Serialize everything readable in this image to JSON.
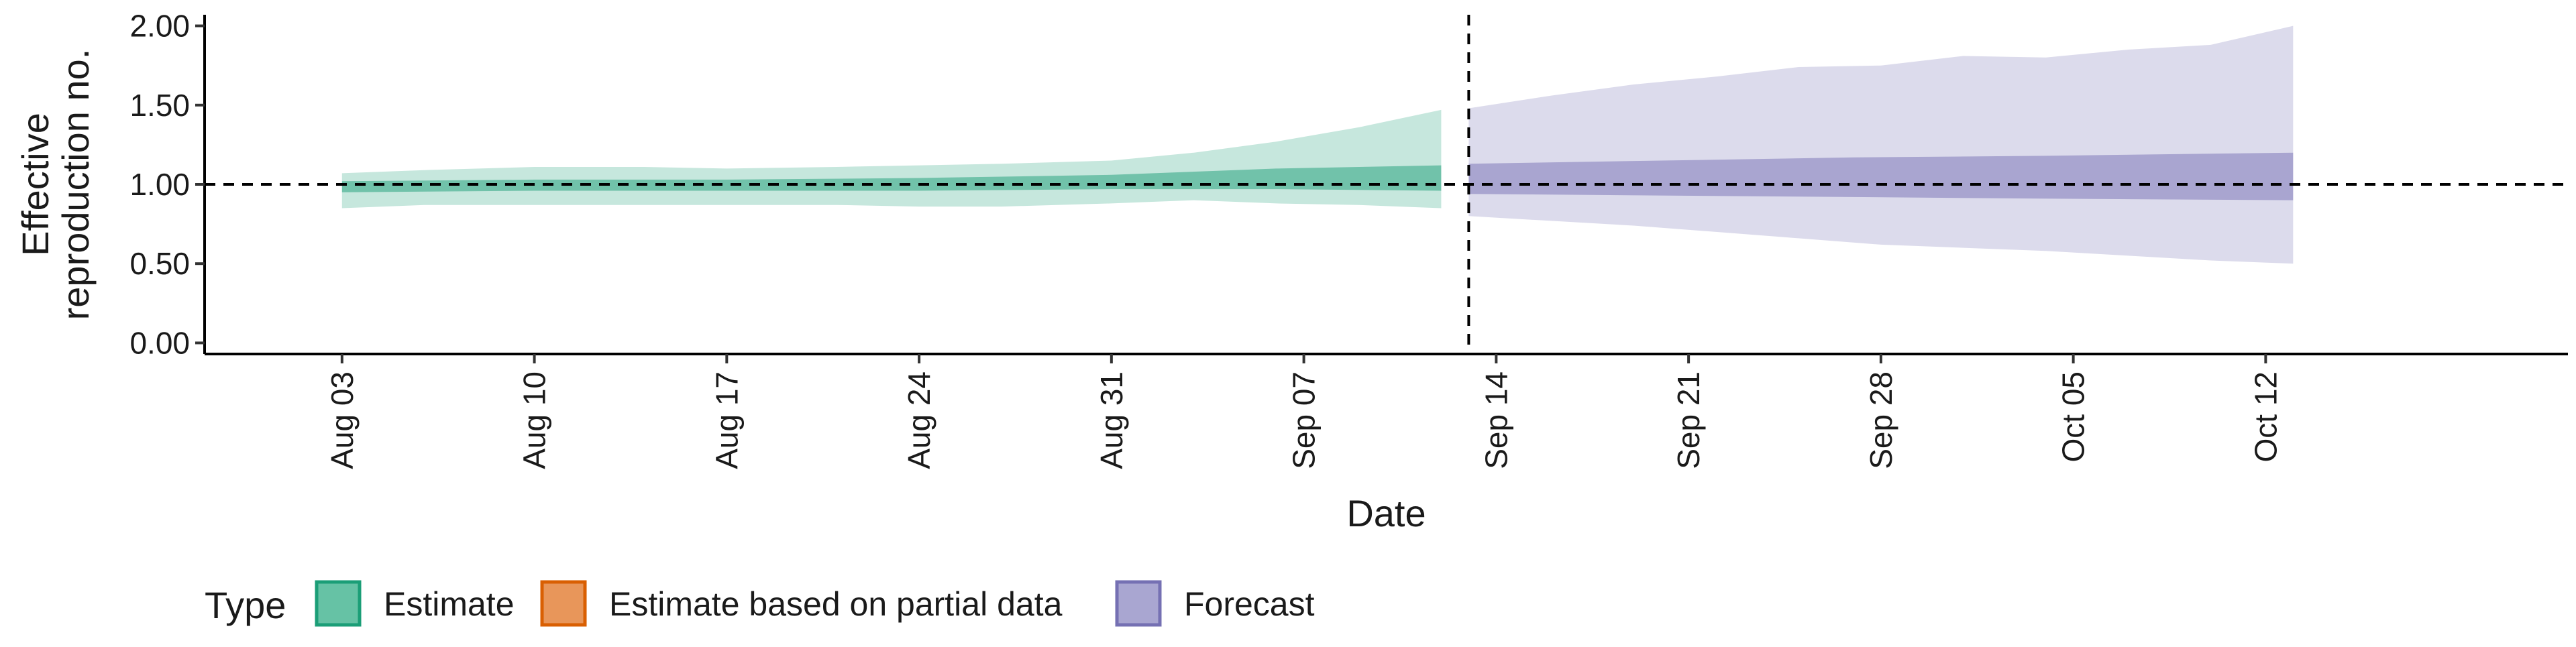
{
  "chart_data": {
    "type": "area",
    "xlabel": "Date",
    "ylabel_lines": [
      "Effective",
      "reproduction no."
    ],
    "ylim": [
      -0.07,
      2.07
    ],
    "y_ticks": [
      0.0,
      0.5,
      1.0,
      1.5,
      2.0
    ],
    "y_tick_labels": [
      "0.00",
      "0.50",
      "1.00",
      "1.50",
      "2.00"
    ],
    "x_range": [
      "2020-07-29",
      "2020-10-23"
    ],
    "x_ticks": [
      "2020-08-03",
      "2020-08-10",
      "2020-08-17",
      "2020-08-24",
      "2020-08-31",
      "2020-09-07",
      "2020-09-14",
      "2020-09-21",
      "2020-09-28",
      "2020-10-05",
      "2020-10-12"
    ],
    "x_tick_labels": [
      "Aug 03",
      "Aug 10",
      "Aug 17",
      "Aug 24",
      "Aug 31",
      "Sep 07",
      "Sep 14",
      "Sep 21",
      "Sep 28",
      "Oct 05",
      "Oct 12"
    ],
    "reference_line_y": 1.0,
    "forecast_start_line_x": "2020-09-13",
    "legend": {
      "title": "Type",
      "position": "bottom",
      "items": [
        {
          "label": "Estimate",
          "fill": "#66c2a5",
          "border": "#1b9e77"
        },
        {
          "label": "Estimate based on partial data",
          "fill": "#e8965a",
          "border": "#d95f02"
        },
        {
          "label": "Forecast",
          "fill": "#a9a6d1",
          "border": "#7570b3"
        }
      ]
    },
    "series": [
      {
        "name": "Estimate",
        "color": "#1b9e77",
        "bands": [
          {
            "interval": "outer",
            "points": [
              {
                "x": "2020-08-03",
                "lower": 0.85,
                "upper": 1.07
              },
              {
                "x": "2020-08-06",
                "lower": 0.87,
                "upper": 1.09
              },
              {
                "x": "2020-08-10",
                "lower": 0.87,
                "upper": 1.11
              },
              {
                "x": "2020-08-14",
                "lower": 0.87,
                "upper": 1.11
              },
              {
                "x": "2020-08-17",
                "lower": 0.87,
                "upper": 1.1
              },
              {
                "x": "2020-08-21",
                "lower": 0.87,
                "upper": 1.11
              },
              {
                "x": "2020-08-24",
                "lower": 0.86,
                "upper": 1.12
              },
              {
                "x": "2020-08-27",
                "lower": 0.86,
                "upper": 1.13
              },
              {
                "x": "2020-08-31",
                "lower": 0.88,
                "upper": 1.15
              },
              {
                "x": "2020-09-03",
                "lower": 0.9,
                "upper": 1.2
              },
              {
                "x": "2020-09-06",
                "lower": 0.88,
                "upper": 1.27
              },
              {
                "x": "2020-09-09",
                "lower": 0.87,
                "upper": 1.36
              },
              {
                "x": "2020-09-12",
                "lower": 0.85,
                "upper": 1.47
              }
            ]
          },
          {
            "interval": "inner",
            "points": [
              {
                "x": "2020-08-03",
                "lower": 0.95,
                "upper": 1.02
              },
              {
                "x": "2020-08-10",
                "lower": 0.96,
                "upper": 1.03
              },
              {
                "x": "2020-08-17",
                "lower": 0.96,
                "upper": 1.03
              },
              {
                "x": "2020-08-24",
                "lower": 0.96,
                "upper": 1.04
              },
              {
                "x": "2020-08-31",
                "lower": 0.97,
                "upper": 1.06
              },
              {
                "x": "2020-09-06",
                "lower": 0.97,
                "upper": 1.1
              },
              {
                "x": "2020-09-12",
                "lower": 0.96,
                "upper": 1.12
              }
            ]
          }
        ]
      },
      {
        "name": "Forecast",
        "color": "#7570b3",
        "bands": [
          {
            "interval": "outer",
            "points": [
              {
                "x": "2020-09-13",
                "lower": 0.8,
                "upper": 1.48
              },
              {
                "x": "2020-09-16",
                "lower": 0.77,
                "upper": 1.56
              },
              {
                "x": "2020-09-19",
                "lower": 0.74,
                "upper": 1.63
              },
              {
                "x": "2020-09-22",
                "lower": 0.7,
                "upper": 1.68
              },
              {
                "x": "2020-09-25",
                "lower": 0.66,
                "upper": 1.74
              },
              {
                "x": "2020-09-28",
                "lower": 0.62,
                "upper": 1.75
              },
              {
                "x": "2020-10-01",
                "lower": 0.6,
                "upper": 1.81
              },
              {
                "x": "2020-10-04",
                "lower": 0.58,
                "upper": 1.8
              },
              {
                "x": "2020-10-07",
                "lower": 0.55,
                "upper": 1.85
              },
              {
                "x": "2020-10-10",
                "lower": 0.52,
                "upper": 1.88
              },
              {
                "x": "2020-10-13",
                "lower": 0.5,
                "upper": 2.0
              }
            ]
          },
          {
            "interval": "inner",
            "points": [
              {
                "x": "2020-09-13",
                "lower": 0.94,
                "upper": 1.13
              },
              {
                "x": "2020-09-20",
                "lower": 0.93,
                "upper": 1.15
              },
              {
                "x": "2020-09-27",
                "lower": 0.92,
                "upper": 1.17
              },
              {
                "x": "2020-10-04",
                "lower": 0.91,
                "upper": 1.18
              },
              {
                "x": "2020-10-13",
                "lower": 0.9,
                "upper": 1.2
              }
            ]
          }
        ]
      }
    ]
  }
}
